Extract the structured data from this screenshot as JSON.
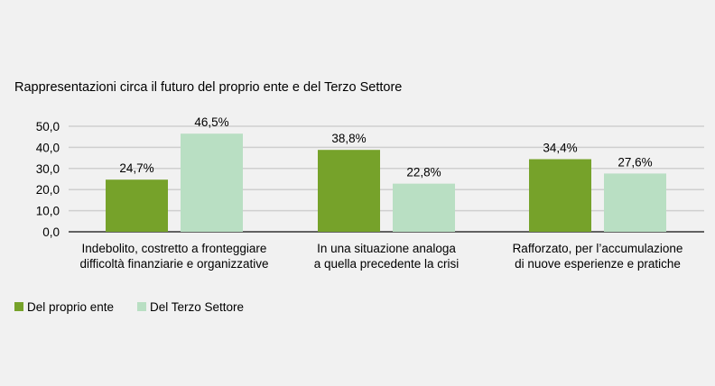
{
  "chart_data": {
    "type": "bar",
    "title": "Rappresentazioni circa il futuro del proprio ente e del Terzo Settore",
    "xlabel": "",
    "ylabel": "",
    "ylim": [
      0,
      50
    ],
    "yticks": [
      "0,0",
      "10,0",
      "20,0",
      "30,0",
      "40,0",
      "50,0"
    ],
    "grid": true,
    "legend_position": "bottom-left",
    "categories": [
      [
        "Indebolito, costretto a fronteggiare",
        "difficoltà finanziarie e organizzative"
      ],
      [
        "In una situazione analoga",
        "a quella precedente la crisi"
      ],
      [
        "Rafforzato, per l’accumulazione",
        "di nuove esperienze e pratiche"
      ]
    ],
    "series": [
      {
        "name": "Del proprio ente",
        "color": "#76a22a",
        "values": [
          24.7,
          38.8,
          34.4
        ],
        "labels": [
          "24,7%",
          "38,8%",
          "34,4%"
        ]
      },
      {
        "name": "Del Terzo Settore",
        "color": "#b9dfc3",
        "values": [
          46.5,
          22.8,
          27.6
        ],
        "labels": [
          "46,5%",
          "22,8%",
          "27,6%"
        ]
      }
    ]
  }
}
